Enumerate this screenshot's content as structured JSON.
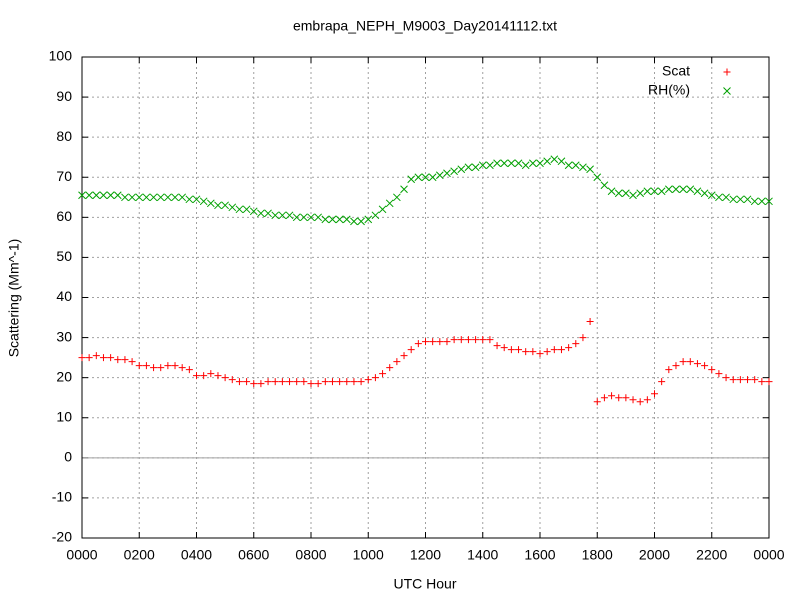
{
  "chart_data": {
    "type": "scatter",
    "title": "embrapa_NEPH_M9003_Day20141112.txt",
    "x_label": "UTC Hour",
    "y_label": "Scattering (Mm^-1)",
    "xlim": [
      0,
      24
    ],
    "ylim": [
      -20,
      100
    ],
    "xticks": [
      {
        "value": 0,
        "label": "0000"
      },
      {
        "value": 2,
        "label": "0200"
      },
      {
        "value": 4,
        "label": "0400"
      },
      {
        "value": 6,
        "label": "0600"
      },
      {
        "value": 8,
        "label": "0800"
      },
      {
        "value": 10,
        "label": "1000"
      },
      {
        "value": 12,
        "label": "1200"
      },
      {
        "value": 14,
        "label": "1400"
      },
      {
        "value": 16,
        "label": "1600"
      },
      {
        "value": 18,
        "label": "1800"
      },
      {
        "value": 20,
        "label": "2000"
      },
      {
        "value": 22,
        "label": "2200"
      },
      {
        "value": 24,
        "label": "0000"
      }
    ],
    "yticks": [
      -20,
      -10,
      0,
      10,
      20,
      30,
      40,
      50,
      60,
      70,
      80,
      90,
      100
    ],
    "grid": true,
    "legend": "top-right",
    "x": [
      0,
      0.25,
      0.5,
      0.75,
      1,
      1.25,
      1.5,
      1.75,
      2,
      2.25,
      2.5,
      2.75,
      3,
      3.25,
      3.5,
      3.75,
      4,
      4.25,
      4.5,
      4.75,
      5,
      5.25,
      5.5,
      5.75,
      6,
      6.25,
      6.5,
      6.75,
      7,
      7.25,
      7.5,
      7.75,
      8,
      8.25,
      8.5,
      8.75,
      9,
      9.25,
      9.5,
      9.75,
      10,
      10.25,
      10.5,
      10.75,
      11,
      11.25,
      11.5,
      11.75,
      12,
      12.25,
      12.5,
      12.75,
      13,
      13.25,
      13.5,
      13.75,
      14,
      14.25,
      14.5,
      14.75,
      15,
      15.25,
      15.5,
      15.75,
      16,
      16.25,
      16.5,
      16.75,
      17,
      17.25,
      17.5,
      17.75,
      18,
      18.25,
      18.5,
      18.75,
      19,
      19.25,
      19.5,
      19.75,
      20,
      20.25,
      20.5,
      20.75,
      21,
      21.25,
      21.5,
      21.75,
      22,
      22.25,
      22.5,
      22.75,
      23,
      23.25,
      23.5,
      23.75,
      24
    ],
    "series": [
      {
        "name": "Scat",
        "color": "#ff0000",
        "marker": "plus",
        "values": [
          25,
          25,
          25.5,
          25,
          25,
          24.5,
          24.5,
          24,
          23,
          23,
          22.5,
          22.5,
          23,
          23,
          22.5,
          22,
          20.5,
          20.5,
          21,
          20.5,
          20,
          19.5,
          19,
          19,
          18.5,
          18.5,
          19,
          19,
          19,
          19,
          19,
          19,
          18.5,
          18.5,
          19,
          19,
          19,
          19,
          19,
          19,
          19.5,
          20,
          21,
          22.5,
          24,
          25.5,
          27,
          28.5,
          29,
          29,
          29,
          29,
          29.5,
          29.5,
          29.5,
          29.5,
          29.5,
          29.5,
          28,
          27.5,
          27,
          27,
          26.5,
          26.5,
          26,
          26.5,
          27,
          27,
          27.5,
          28.5,
          30,
          34,
          14,
          15,
          15.5,
          15,
          15,
          14.5,
          14,
          14.5,
          16,
          19,
          22,
          23,
          24,
          24,
          23.5,
          23,
          22,
          21,
          20,
          19.5,
          19.5,
          19.5,
          19.5,
          19,
          19
        ]
      },
      {
        "name": "RH(%)",
        "color": "#00a000",
        "marker": "cross",
        "values": [
          65.5,
          65.5,
          65.5,
          65.5,
          65.5,
          65.5,
          65,
          65,
          65,
          65,
          65,
          65,
          65,
          65,
          65,
          64.5,
          64.5,
          64,
          63.5,
          63,
          63,
          62.5,
          62,
          62,
          61.5,
          61,
          61,
          60.5,
          60.5,
          60.5,
          60,
          60,
          60,
          60,
          59.5,
          59.5,
          59.5,
          59.5,
          59,
          59,
          59.5,
          60.5,
          62,
          63.5,
          65,
          67,
          69.5,
          70,
          70,
          70,
          70.5,
          71,
          71.5,
          72,
          72.5,
          72.5,
          73,
          73,
          73.5,
          73.5,
          73.5,
          73.5,
          73,
          73.5,
          73.5,
          74,
          74.5,
          74,
          73,
          73,
          72.5,
          72,
          70,
          68,
          66.5,
          66,
          66,
          65.5,
          66,
          66.5,
          66.5,
          66.5,
          67,
          67,
          67,
          67,
          66.5,
          66,
          65.5,
          65,
          65,
          64.5,
          64.5,
          64.5,
          64,
          64,
          64
        ]
      }
    ]
  }
}
